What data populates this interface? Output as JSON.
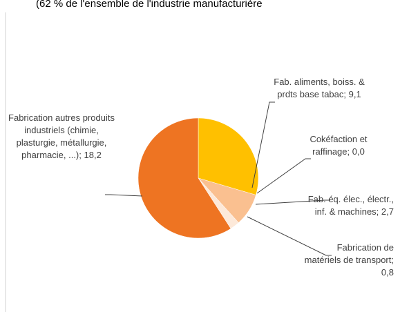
{
  "chart_data": {
    "type": "pie",
    "subtitle": "(62 % de l'ensemble de l'industrie manufacturière",
    "categories": [
      "Fab. aliments, boiss. & prdts base tabac",
      "Cokéfaction et raffinage",
      "Fab. éq. élec., électr., inf. & machines",
      "Fabrication de matériels de transport",
      "Fabrication autres produits industriels (chimie, plasturgie, métallurgie, pharmacie, ...)"
    ],
    "values": [
      9.1,
      0.0,
      2.7,
      0.8,
      18.2
    ],
    "value_labels": [
      "9,1",
      "0,0",
      "2,7",
      "0,8",
      "18,2"
    ],
    "separator": ";",
    "colors": [
      "#ffc000",
      "#ffd966",
      "#fac090",
      "#fde9d9",
      "#ee7422"
    ]
  }
}
